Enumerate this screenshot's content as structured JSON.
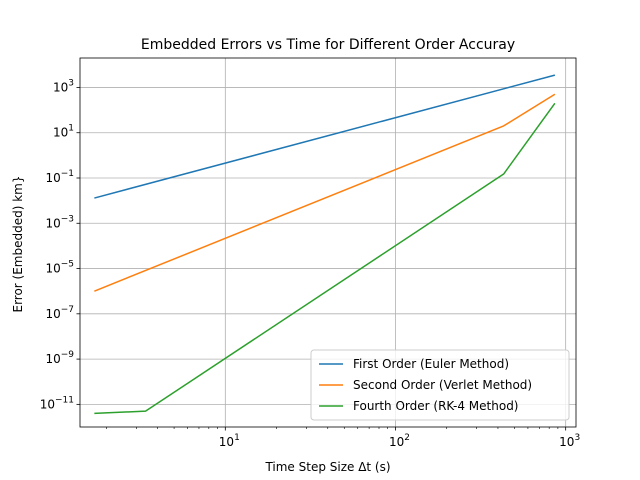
{
  "chart_data": {
    "type": "line",
    "title": "Embedded Errors vs Time for Different Order Accuray",
    "xlabel": "Time Step Size Δt (s)",
    "ylabel": "Error (Embedded) km}",
    "xscale": "log",
    "yscale": "log",
    "xlim": [
      1.4,
      1150
    ],
    "ylim": [
      1e-12,
      20000
    ],
    "grid": true,
    "legend_position": "lower-right",
    "x_ticks": [
      {
        "value": 10,
        "base": "10",
        "exp": "1"
      },
      {
        "value": 100,
        "base": "10",
        "exp": "2"
      },
      {
        "value": 1000,
        "base": "10",
        "exp": "3"
      }
    ],
    "y_ticks": [
      {
        "value": 1000.0,
        "base": "10",
        "exp": "3"
      },
      {
        "value": 10.0,
        "base": "10",
        "exp": "1"
      },
      {
        "value": 0.1,
        "base": "10",
        "exp": "−1"
      },
      {
        "value": 0.001,
        "base": "10",
        "exp": "−3"
      },
      {
        "value": 1e-05,
        "base": "10",
        "exp": "−5"
      },
      {
        "value": 1e-07,
        "base": "10",
        "exp": "−7"
      },
      {
        "value": 1e-09,
        "base": "10",
        "exp": "−9"
      },
      {
        "value": 1e-11,
        "base": "10",
        "exp": "−11"
      }
    ],
    "series": [
      {
        "name": "First Order (Euler Method)",
        "color": "#1f77b4",
        "x": [
          1.7,
          864
        ],
        "y": [
          0.013,
          3500
        ]
      },
      {
        "name": "Second Order (Verlet Method)",
        "color": "#ff7f0e",
        "x": [
          1.7,
          432,
          864
        ],
        "y": [
          1e-06,
          20,
          500
        ]
      },
      {
        "name": "Fourth Order (RK-4 Method)",
        "color": "#2ca02c",
        "x": [
          1.7,
          3.4,
          432,
          864
        ],
        "y": [
          4e-12,
          5e-12,
          0.15,
          200
        ]
      }
    ]
  }
}
